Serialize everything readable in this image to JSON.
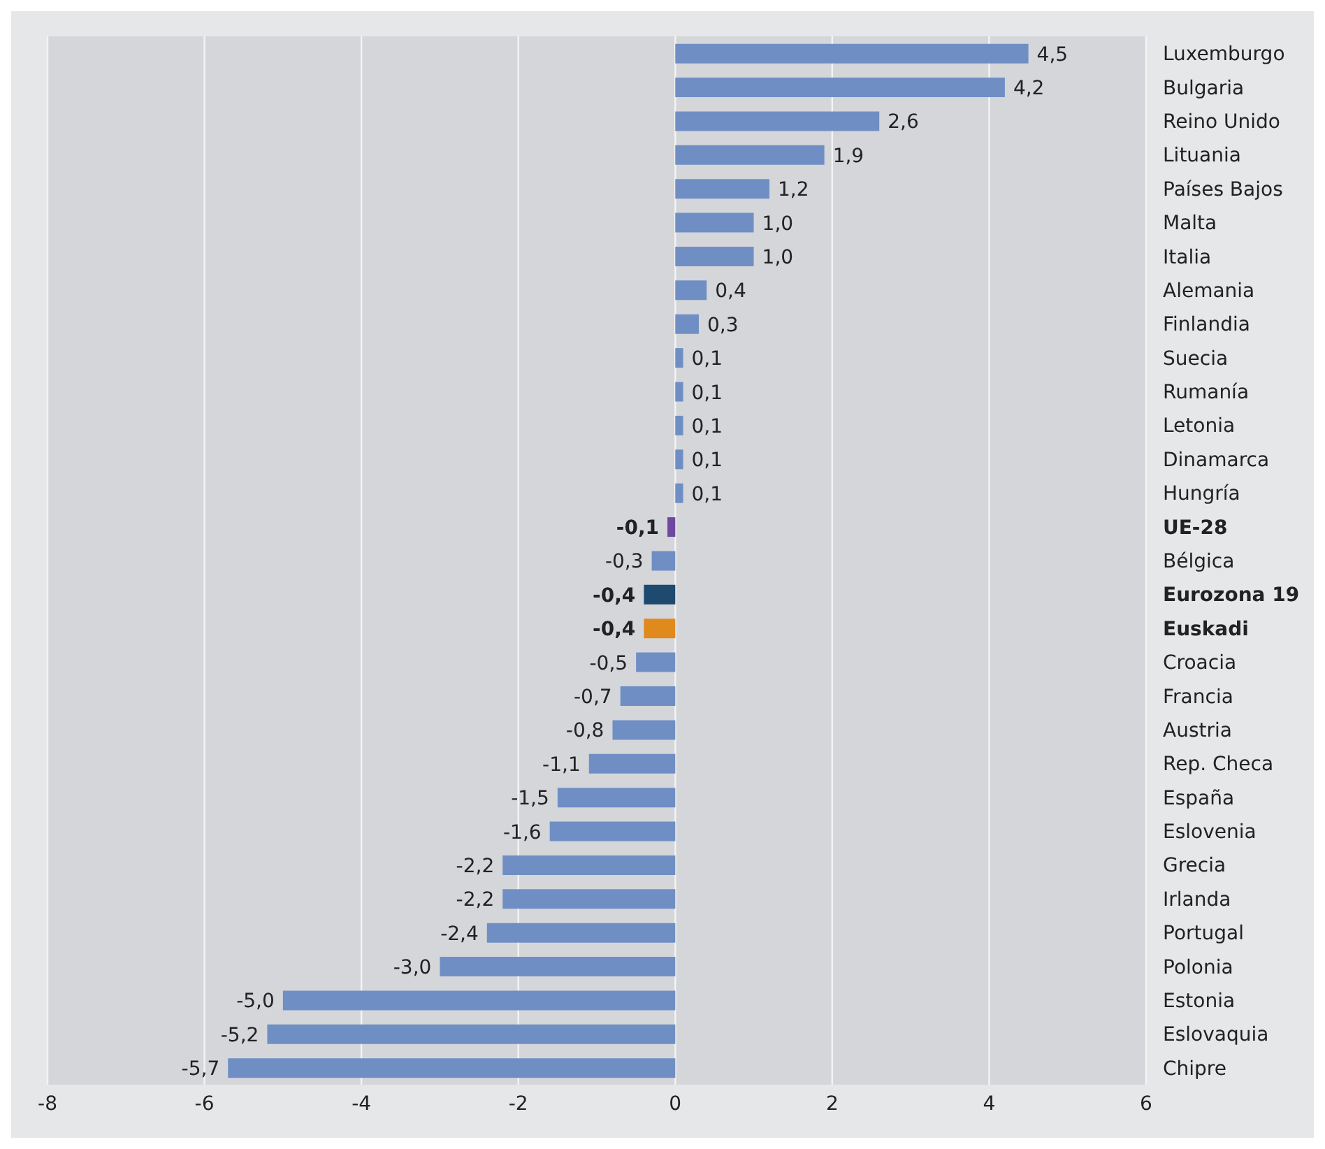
{
  "chart_data": {
    "type": "bar",
    "orientation": "horizontal",
    "categories": [
      "Luxemburgo",
      "Bulgaria",
      "Reino Unido",
      "Lituania",
      "Países Bajos",
      "Malta",
      "Italia",
      "Alemania",
      "Finlandia",
      "Suecia",
      "Rumanía",
      "Letonia",
      "Dinamarca",
      "Hungría",
      "UE-28",
      "Bélgica",
      "Eurozona 19",
      "Euskadi",
      "Croacia",
      "Francia",
      "Austria",
      "Rep. Checa",
      "España",
      "Eslovenia",
      "Grecia",
      "Irlanda",
      "Portugal",
      "Polonia",
      "Estonia",
      "Eslovaquia",
      "Chipre"
    ],
    "values": [
      4.5,
      4.2,
      2.6,
      1.9,
      1.2,
      1.0,
      1.0,
      0.4,
      0.3,
      0.1,
      0.1,
      0.1,
      0.1,
      0.1,
      -0.1,
      -0.3,
      -0.4,
      -0.4,
      -0.5,
      -0.7,
      -0.8,
      -1.1,
      -1.5,
      -1.6,
      -2.2,
      -2.2,
      -2.4,
      -3.0,
      -5.0,
      -5.2,
      -5.7
    ],
    "value_labels": [
      "4,5",
      "4,2",
      "2,6",
      "1,9",
      "1,2",
      "1,0",
      "1,0",
      "0,4",
      "0,3",
      "0,1",
      "0,1",
      "0,1",
      "0,1",
      "0,1",
      "-0,1",
      "-0,3",
      "-0,4",
      "-0,4",
      "-0,5",
      "-0,7",
      "-0,8",
      "-1,1",
      "-1,5",
      "-1,6",
      "-2,2",
      "-2,2",
      "-2,4",
      "-3,0",
      "-5,0",
      "-5,2",
      "-5,7"
    ],
    "colors": [
      "#6f8fc4",
      "#6f8fc4",
      "#6f8fc4",
      "#6f8fc4",
      "#6f8fc4",
      "#6f8fc4",
      "#6f8fc4",
      "#6f8fc4",
      "#6f8fc4",
      "#6f8fc4",
      "#6f8fc4",
      "#6f8fc4",
      "#6f8fc4",
      "#6f8fc4",
      "#7048a0",
      "#6f8fc4",
      "#1d4a6e",
      "#e08a1e",
      "#6f8fc4",
      "#6f8fc4",
      "#6f8fc4",
      "#6f8fc4",
      "#6f8fc4",
      "#6f8fc4",
      "#6f8fc4",
      "#6f8fc4",
      "#6f8fc4",
      "#6f8fc4",
      "#6f8fc4",
      "#6f8fc4",
      "#6f8fc4"
    ],
    "xlim": [
      -8,
      6
    ],
    "xticks": [
      -8,
      -6,
      -4,
      -2,
      0,
      2,
      4,
      6
    ],
    "grid": "x"
  }
}
